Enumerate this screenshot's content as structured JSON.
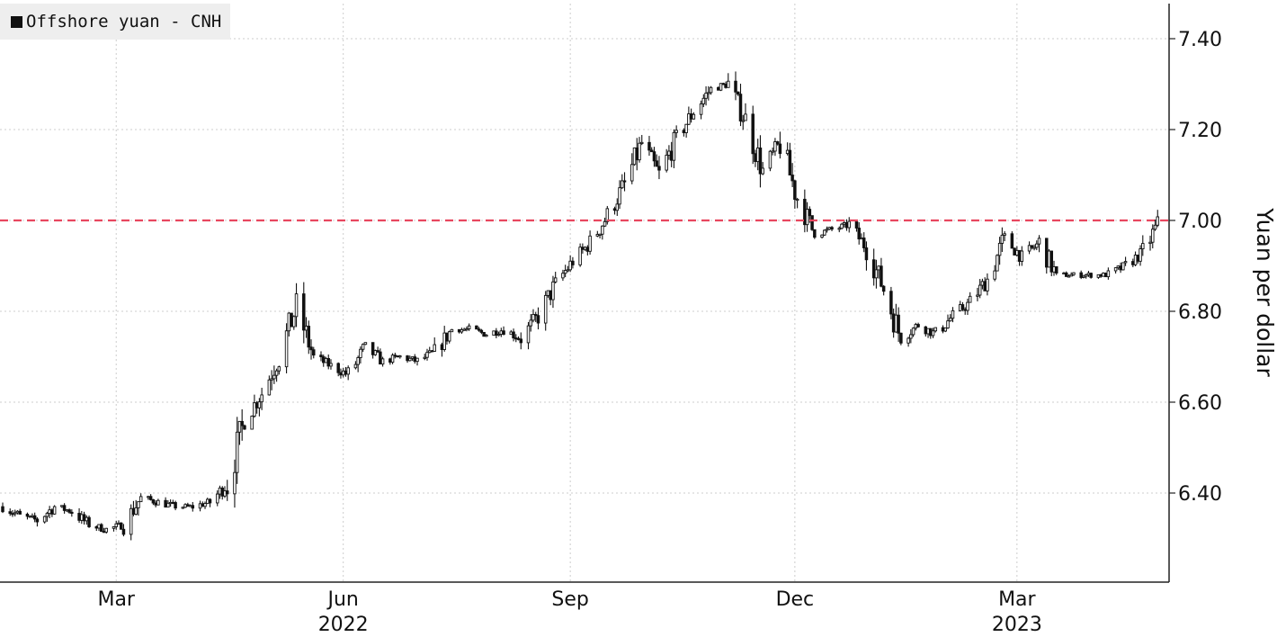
{
  "chart_data": {
    "type": "candlestick",
    "legend": {
      "label": "Offshore yuan - CNH",
      "color": "#111111"
    },
    "ylabel": "Yuan per dollar",
    "ylim": [
      6.19,
      7.47
    ],
    "yticks": [
      {
        "value": 6.4,
        "label": "6.40"
      },
      {
        "value": 6.6,
        "label": "6.60"
      },
      {
        "value": 6.8,
        "label": "6.80"
      },
      {
        "value": 7.0,
        "label": "7.00"
      },
      {
        "value": 7.2,
        "label": "7.20"
      },
      {
        "value": 7.4,
        "label": "7.40"
      }
    ],
    "xlim": [
      "2022-01-14",
      "2023-04-28"
    ],
    "xticks": [
      {
        "date": "2022-03-01",
        "label": "Mar"
      },
      {
        "date": "2022-06-01",
        "label": "Jun"
      },
      {
        "date": "2022-09-01",
        "label": "Sep"
      },
      {
        "date": "2022-12-01",
        "label": "Dec"
      },
      {
        "date": "2023-03-01",
        "label": "Mar"
      }
    ],
    "year_labels": [
      {
        "date": "2022-06-01",
        "label": "2022"
      },
      {
        "date": "2023-03-01",
        "label": "2023"
      }
    ],
    "reference_line": {
      "value": 7.0,
      "color": "#e8475f"
    },
    "grid": true,
    "legend_position": "top-left",
    "colors": {
      "candle": "#111111",
      "grid": "#cccccc",
      "axis": "#222222",
      "background": "#ffffff"
    },
    "series": [
      {
        "name": "Offshore yuan - CNH",
        "weekly_close": [
          [
            "2022-01-14",
            6.37
          ],
          [
            "2022-01-21",
            6.35
          ],
          [
            "2022-01-28",
            6.34
          ],
          [
            "2022-02-04",
            6.37
          ],
          [
            "2022-02-11",
            6.36
          ],
          [
            "2022-02-18",
            6.33
          ],
          [
            "2022-02-25",
            6.32
          ],
          [
            "2022-03-04",
            6.33
          ],
          [
            "2022-03-11",
            6.39
          ],
          [
            "2022-03-18",
            6.38
          ],
          [
            "2022-03-25",
            6.37
          ],
          [
            "2022-04-01",
            6.37
          ],
          [
            "2022-04-08",
            6.38
          ],
          [
            "2022-04-15",
            6.42
          ],
          [
            "2022-04-22",
            6.56
          ],
          [
            "2022-04-29",
            6.62
          ],
          [
            "2022-05-06",
            6.7
          ],
          [
            "2022-05-13",
            6.81
          ],
          [
            "2022-05-20",
            6.7
          ],
          [
            "2022-05-27",
            6.68
          ],
          [
            "2022-06-03",
            6.66
          ],
          [
            "2022-06-10",
            6.72
          ],
          [
            "2022-06-17",
            6.69
          ],
          [
            "2022-06-24",
            6.7
          ],
          [
            "2022-07-01",
            6.69
          ],
          [
            "2022-07-08",
            6.71
          ],
          [
            "2022-07-15",
            6.76
          ],
          [
            "2022-07-22",
            6.76
          ],
          [
            "2022-07-29",
            6.75
          ],
          [
            "2022-08-05",
            6.76
          ],
          [
            "2022-08-12",
            6.74
          ],
          [
            "2022-08-19",
            6.79
          ],
          [
            "2022-08-26",
            6.86
          ],
          [
            "2022-09-02",
            6.91
          ],
          [
            "2022-09-09",
            6.95
          ],
          [
            "2022-09-16",
            7.01
          ],
          [
            "2022-09-23",
            7.08
          ],
          [
            "2022-09-30",
            7.17
          ],
          [
            "2022-10-07",
            7.1
          ],
          [
            "2022-10-14",
            7.18
          ],
          [
            "2022-10-21",
            7.24
          ],
          [
            "2022-10-28",
            7.29
          ],
          [
            "2022-11-04",
            7.3
          ],
          [
            "2022-11-11",
            7.22
          ],
          [
            "2022-11-18",
            7.11
          ],
          [
            "2022-11-25",
            7.17
          ],
          [
            "2022-12-02",
            7.05
          ],
          [
            "2022-12-09",
            6.97
          ],
          [
            "2022-12-16",
            6.98
          ],
          [
            "2022-12-23",
            6.99
          ],
          [
            "2022-12-30",
            6.94
          ],
          [
            "2023-01-06",
            6.85
          ],
          [
            "2023-01-13",
            6.74
          ],
          [
            "2023-01-20",
            6.77
          ],
          [
            "2023-01-27",
            6.75
          ],
          [
            "2023-02-03",
            6.79
          ],
          [
            "2023-02-10",
            6.82
          ],
          [
            "2023-02-17",
            6.87
          ],
          [
            "2023-02-24",
            6.96
          ],
          [
            "2023-03-03",
            6.92
          ],
          [
            "2023-03-10",
            6.95
          ],
          [
            "2023-03-17",
            6.88
          ],
          [
            "2023-03-24",
            6.88
          ],
          [
            "2023-03-31",
            6.88
          ],
          [
            "2023-04-07",
            6.88
          ],
          [
            "2023-04-14",
            6.9
          ],
          [
            "2023-04-21",
            6.93
          ],
          [
            "2023-04-28",
            7.0
          ]
        ]
      }
    ]
  }
}
